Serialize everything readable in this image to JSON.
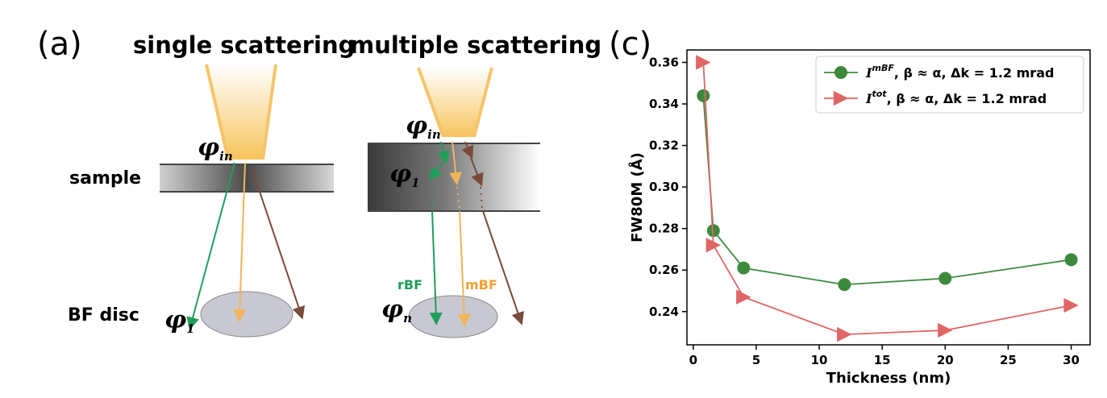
{
  "panel_a": {
    "label": "(a)",
    "single_title": "single scattering",
    "multiple_title": "multiple scattering",
    "sample_label": "sample",
    "bf_disc_label": "BF disc",
    "phi_in_base": "φ",
    "phi_in_sub": "in",
    "phi_1_base": "φ",
    "phi_1_sub": "1",
    "phi_n_base": "φ",
    "phi_n_sub": "n",
    "rbf_label": "rBF",
    "mbf_label": "mBF",
    "colors": {
      "beam": "#f5c46a",
      "green": "#1f9e5a",
      "orange": "#f0b45a",
      "brown": "#7a4a3a",
      "sample_dark": "#555555",
      "disc": "#c8c8d2",
      "rbf_text": "#1f9e5a",
      "mbf_text": "#f0a030"
    }
  },
  "panel_c": {
    "label": "(c)",
    "chart_data": {
      "type": "line",
      "xlabel": "Thickness (nm)",
      "ylabel": "FW80M (Å)",
      "xlim": [
        -0.5,
        31.5
      ],
      "ylim": [
        0.224,
        0.366
      ],
      "xticks": [
        "0",
        "5",
        "10",
        "15",
        "20",
        "25",
        "30"
      ],
      "yticks": [
        "0.24",
        "0.26",
        "0.28",
        "0.30",
        "0.32",
        "0.34",
        "0.36"
      ],
      "legend_position": "top-right",
      "grid": false,
      "series": [
        {
          "name_main": "I",
          "name_sup": "mBF",
          "name_rest": ", β ≈ α, Δk = 1.2 mrad",
          "marker": "circle",
          "color": "#3d8a3d",
          "line_color": "#3d8a3d",
          "x": [
            0.8,
            1.6,
            4.0,
            12.0,
            20.0,
            30.0
          ],
          "y": [
            0.344,
            0.279,
            0.261,
            0.253,
            0.256,
            0.265
          ]
        },
        {
          "name_main": "I",
          "name_sup": "tot",
          "name_rest": ", β ≈ α, Δk = 1.2 mrad",
          "marker": "triangle-right",
          "color": "#e06666",
          "line_color": "#e06666",
          "x": [
            0.8,
            1.6,
            4.0,
            12.0,
            20.0,
            30.0
          ],
          "y": [
            0.36,
            0.272,
            0.247,
            0.229,
            0.231,
            0.243
          ]
        }
      ]
    }
  }
}
